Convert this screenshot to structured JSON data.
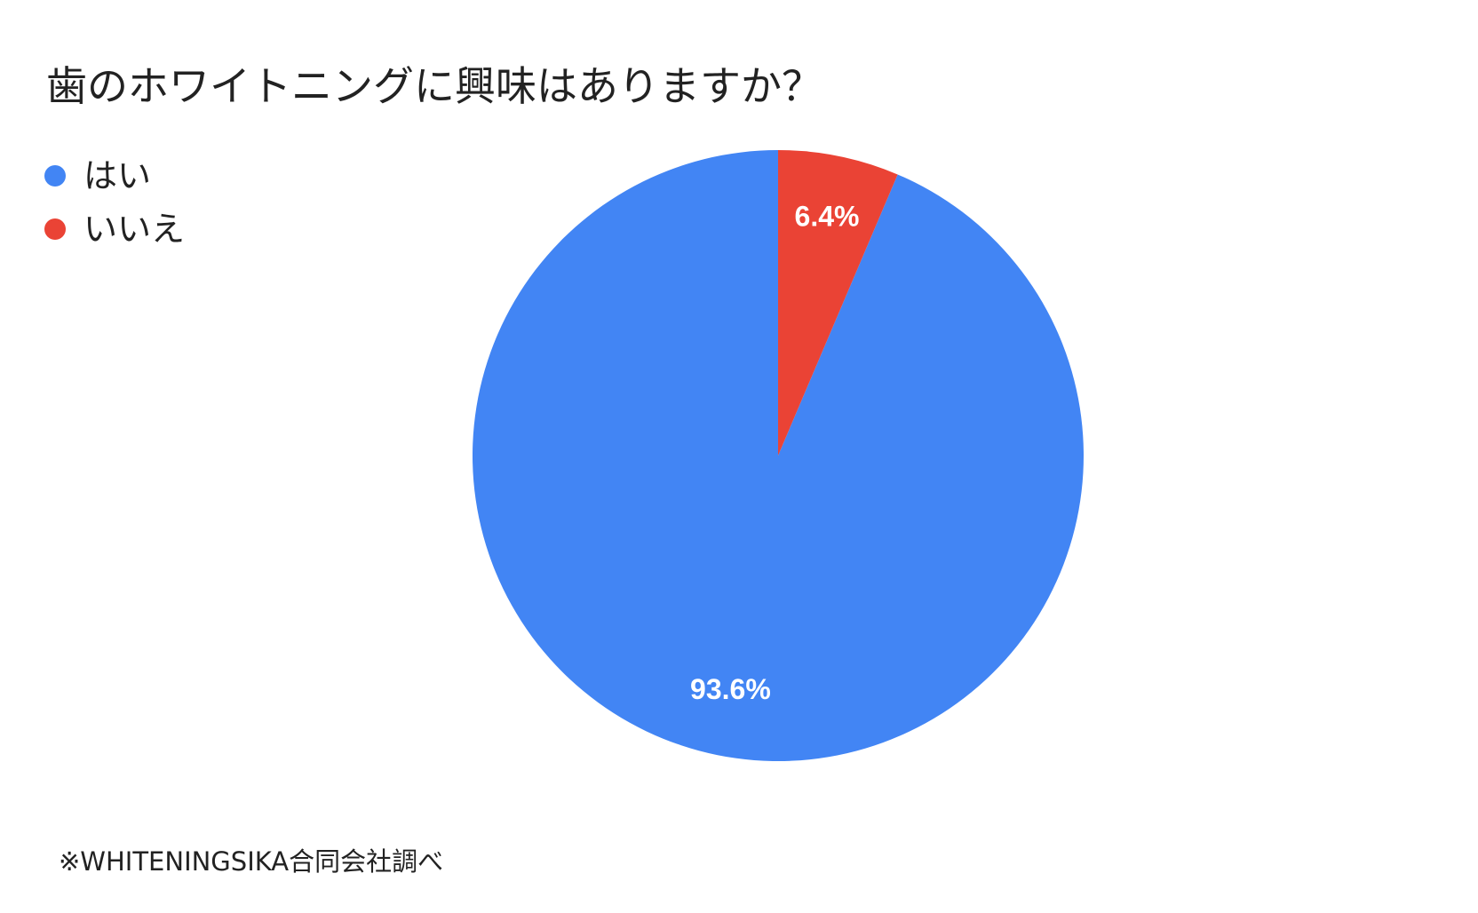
{
  "chart_data": {
    "type": "pie",
    "title": "歯のホワイトニングに興味はありますか？",
    "categories": [
      "はい",
      "いいえ"
    ],
    "values": [
      93.6,
      6.4
    ],
    "unit": "%",
    "data_labels": [
      "93.6%",
      "6.4%"
    ],
    "colors": [
      "#4285f4",
      "#ea4335"
    ],
    "legend_position": "top-left",
    "start_angle": "12 o'clock",
    "direction": "counter-clockwise"
  },
  "legend": {
    "items": [
      {
        "label": "はい",
        "color": "#4285f4"
      },
      {
        "label": "いいえ",
        "color": "#ea4335"
      }
    ]
  },
  "footer": {
    "source": "※WHITENINGSIKA合同会社調べ"
  }
}
